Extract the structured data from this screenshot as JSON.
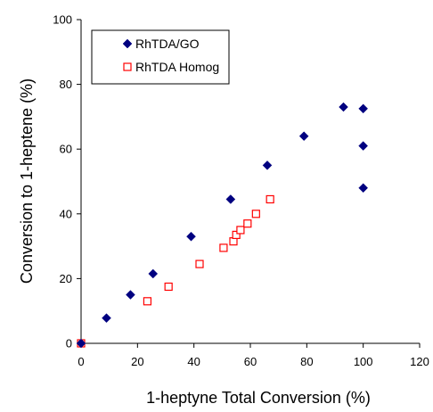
{
  "chart_data": {
    "type": "scatter",
    "title": "",
    "xlabel": "1-heptyne Total Conversion (%)",
    "ylabel": "Conversion to 1-heptene  (%)",
    "xlim": [
      0,
      120
    ],
    "ylim": [
      0,
      100
    ],
    "xticks": [
      "0",
      "20",
      "40",
      "60",
      "80",
      "100",
      "120"
    ],
    "yticks": [
      "0",
      "20",
      "40",
      "60",
      "80",
      "100"
    ],
    "grid": false,
    "legend_position": "top-left",
    "series": [
      {
        "name": "RhTDA/GO",
        "marker": "diamond",
        "color": "#000080",
        "x": [
          0,
          9,
          17.5,
          25.5,
          39,
          53,
          66,
          79,
          93,
          100,
          100,
          100
        ],
        "y": [
          0,
          7.8,
          15,
          21.5,
          33,
          44.5,
          55,
          64,
          73,
          72.5,
          61,
          48
        ]
      },
      {
        "name": "RhTDA Homog",
        "marker": "square-open",
        "color": "#ff0000",
        "x": [
          0,
          23.5,
          31,
          42,
          50.5,
          54,
          55,
          56.5,
          59,
          62,
          67
        ],
        "y": [
          0,
          13,
          17.5,
          24.5,
          29.5,
          31.5,
          33.5,
          35,
          37,
          40,
          44.5
        ]
      }
    ]
  }
}
